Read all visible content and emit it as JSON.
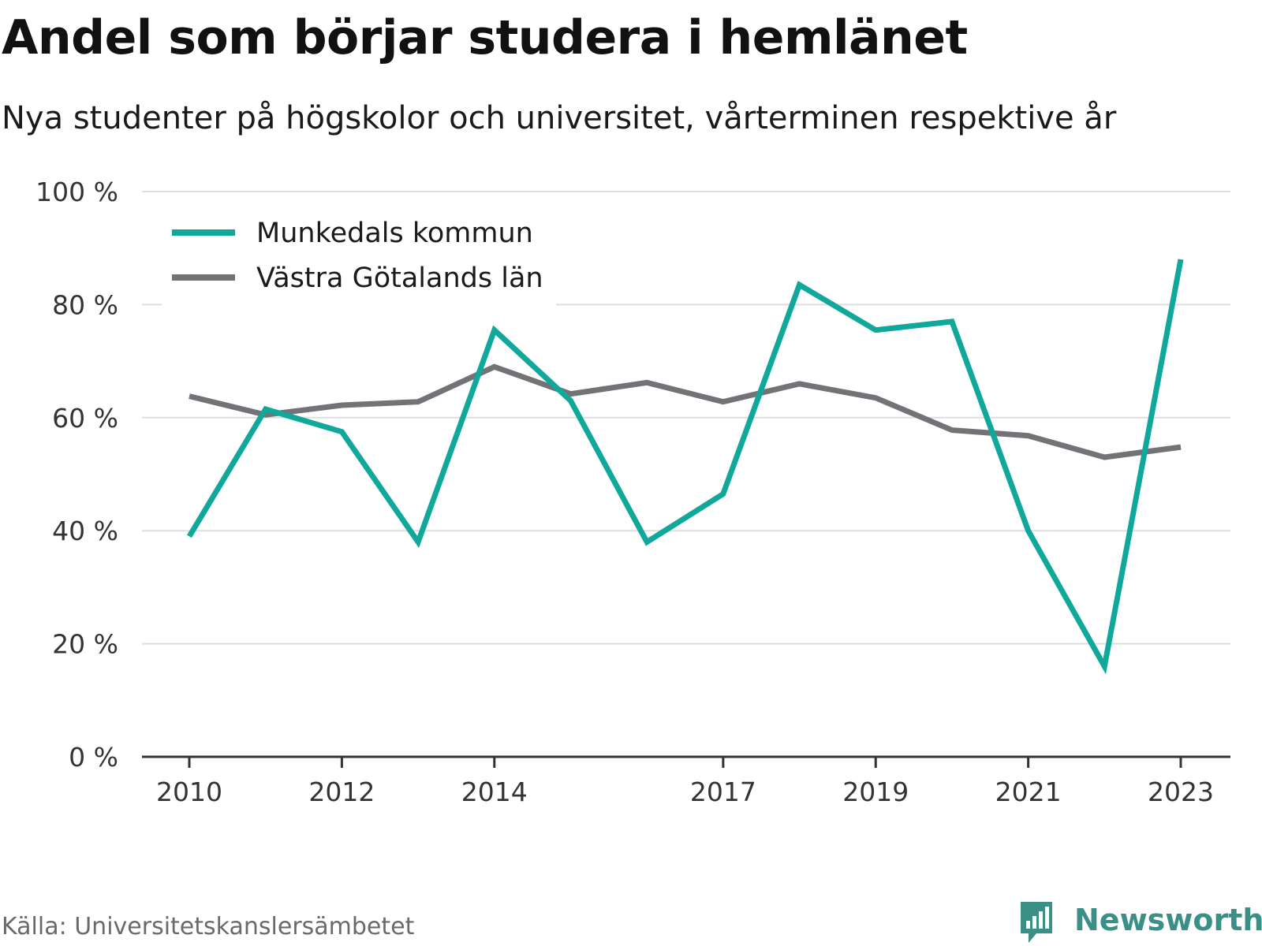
{
  "title": "Andel som börjar studera i hemlänet",
  "subtitle": "Nya studenter på högskolor och universitet, vårterminen respektive år",
  "source": "Källa: Universitetskanslersämbetet",
  "brand": {
    "name": "Newsworthy",
    "icon": "newsworthy-logo-icon",
    "color": "#3a8f86"
  },
  "chart_data": {
    "type": "line",
    "x": [
      2010,
      2011,
      2012,
      2013,
      2014,
      2015,
      2016,
      2017,
      2018,
      2019,
      2020,
      2021,
      2022,
      2023
    ],
    "x_tick_values": [
      2010,
      2012,
      2014,
      2017,
      2019,
      2021,
      2023
    ],
    "x_tick_labels": [
      "2010",
      "2012",
      "2014",
      "2017",
      "2019",
      "2021",
      "2023"
    ],
    "y_tick_values": [
      0,
      20,
      40,
      60,
      80,
      100
    ],
    "y_tick_labels": [
      "0 %",
      "20 %",
      "40 %",
      "60 %",
      "80 %",
      "100 %"
    ],
    "ylim": [
      0,
      100
    ],
    "grid": true,
    "legend_position": "top-left",
    "series": [
      {
        "name": "Munkedals kommun",
        "color": "#0fa89b",
        "values": [
          39,
          61.5,
          57.5,
          38,
          75.5,
          63,
          38,
          46.5,
          83.5,
          75.5,
          77,
          40,
          16,
          88
        ]
      },
      {
        "name": "Västra Götalands län",
        "color": "#737277",
        "values": [
          63.8,
          60.5,
          62.2,
          62.8,
          69,
          64.2,
          66.2,
          62.8,
          66,
          63.5,
          57.8,
          56.8,
          53,
          54.8
        ]
      }
    ]
  }
}
